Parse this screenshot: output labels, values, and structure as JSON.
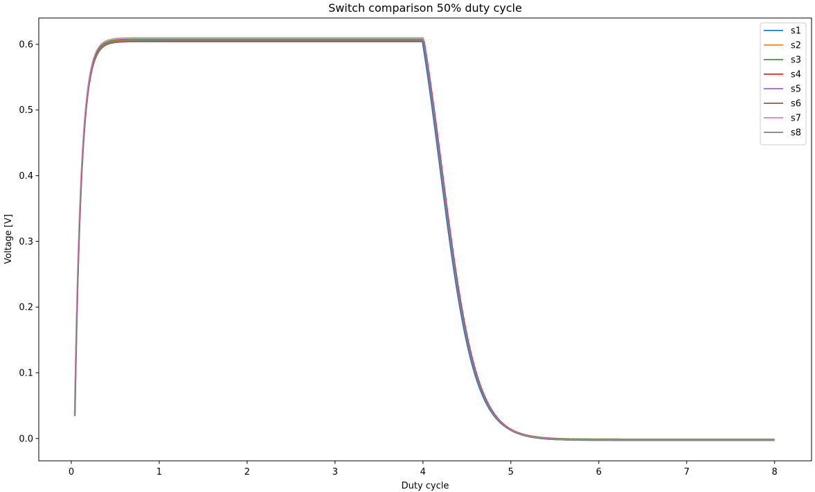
{
  "chart_data": {
    "type": "line",
    "title": "Switch comparison 50% duty cycle",
    "xlabel": "Duty cycle",
    "ylabel": "Voltage [V]",
    "xlim": [
      -0.37,
      8.42
    ],
    "ylim": [
      -0.034,
      0.64
    ],
    "xticks": [
      0,
      1,
      2,
      3,
      4,
      5,
      6,
      7,
      8
    ],
    "yticks": [
      0.0,
      0.1,
      0.2,
      0.3,
      0.4,
      0.5,
      0.6
    ],
    "xtick_labels": [
      "0",
      "1",
      "2",
      "3",
      "4",
      "5",
      "6",
      "7",
      "8"
    ],
    "ytick_labels": [
      "0.0",
      "0.1",
      "0.2",
      "0.3",
      "0.4",
      "0.5",
      "0.6"
    ],
    "grid": false,
    "legend_position": "top-right",
    "model": {
      "rise_start": 0.04,
      "fall_start": 4.0,
      "start_value": 0.034,
      "rise_tau": 0.075,
      "fall_tau": 0.2,
      "fall_center_offset": 0.2
    },
    "series": [
      {
        "name": "s1",
        "color": "#1f77b4",
        "high": 0.606,
        "low": -0.002,
        "rise_shift": 0.0,
        "fall_shift": -0.01
      },
      {
        "name": "s2",
        "color": "#ff7f0e",
        "high": 0.607,
        "low": -0.001,
        "rise_shift": -0.003,
        "fall_shift": 0.0
      },
      {
        "name": "s3",
        "color": "#2ca02c",
        "high": 0.608,
        "low": -0.001,
        "rise_shift": -0.002,
        "fall_shift": 0.005
      },
      {
        "name": "s4",
        "color": "#d62728",
        "high": 0.605,
        "low": -0.002,
        "rise_shift": 0.0,
        "fall_shift": 0.015
      },
      {
        "name": "s5",
        "color": "#9467bd",
        "high": 0.604,
        "low": -0.003,
        "rise_shift": 0.002,
        "fall_shift": 0.003
      },
      {
        "name": "s6",
        "color": "#8c564b",
        "high": 0.604,
        "low": -0.002,
        "rise_shift": 0.003,
        "fall_shift": 0.01
      },
      {
        "name": "s7",
        "color": "#e377c2",
        "high": 0.61,
        "low": -0.002,
        "rise_shift": -0.005,
        "fall_shift": 0.005
      },
      {
        "name": "s8",
        "color": "#7f7f7f",
        "high": 0.605,
        "low": -0.003,
        "rise_shift": 0.001,
        "fall_shift": 0.008
      }
    ]
  }
}
